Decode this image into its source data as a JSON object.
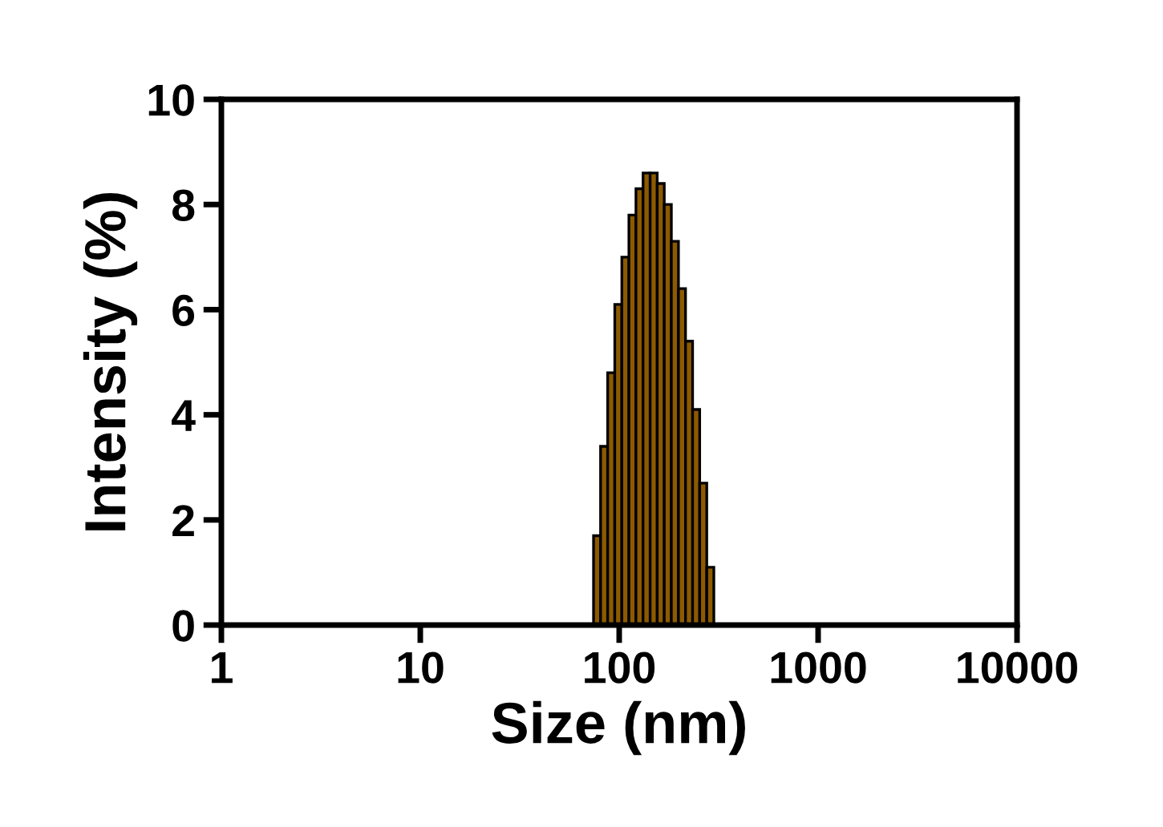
{
  "chart_data": {
    "type": "histogram",
    "xlabel": "Size (nm)",
    "ylabel": "Intensity (%)",
    "bins": [
      74.3,
      80.6,
      87.5,
      95.0,
      103.1,
      111.9,
      121.4,
      131.8,
      143.1,
      155.3,
      168.5,
      182.9,
      198.6,
      215.5,
      233.9,
      253.9,
      275.6,
      299.1
    ],
    "values": [
      1.7,
      3.4,
      4.8,
      6.1,
      7.0,
      7.8,
      8.3,
      8.6,
      8.6,
      8.4,
      8.0,
      7.3,
      6.4,
      5.4,
      4.1,
      2.7,
      1.1
    ],
    "color": "#8c5a00",
    "log": "x",
    "xlim": [
      1,
      10000
    ],
    "xticks": [
      1,
      10,
      100,
      1000,
      10000
    ],
    "ylim": [
      0,
      10
    ],
    "yticks": [
      0,
      2,
      4,
      6,
      8,
      10
    ],
    "grid": false
  }
}
